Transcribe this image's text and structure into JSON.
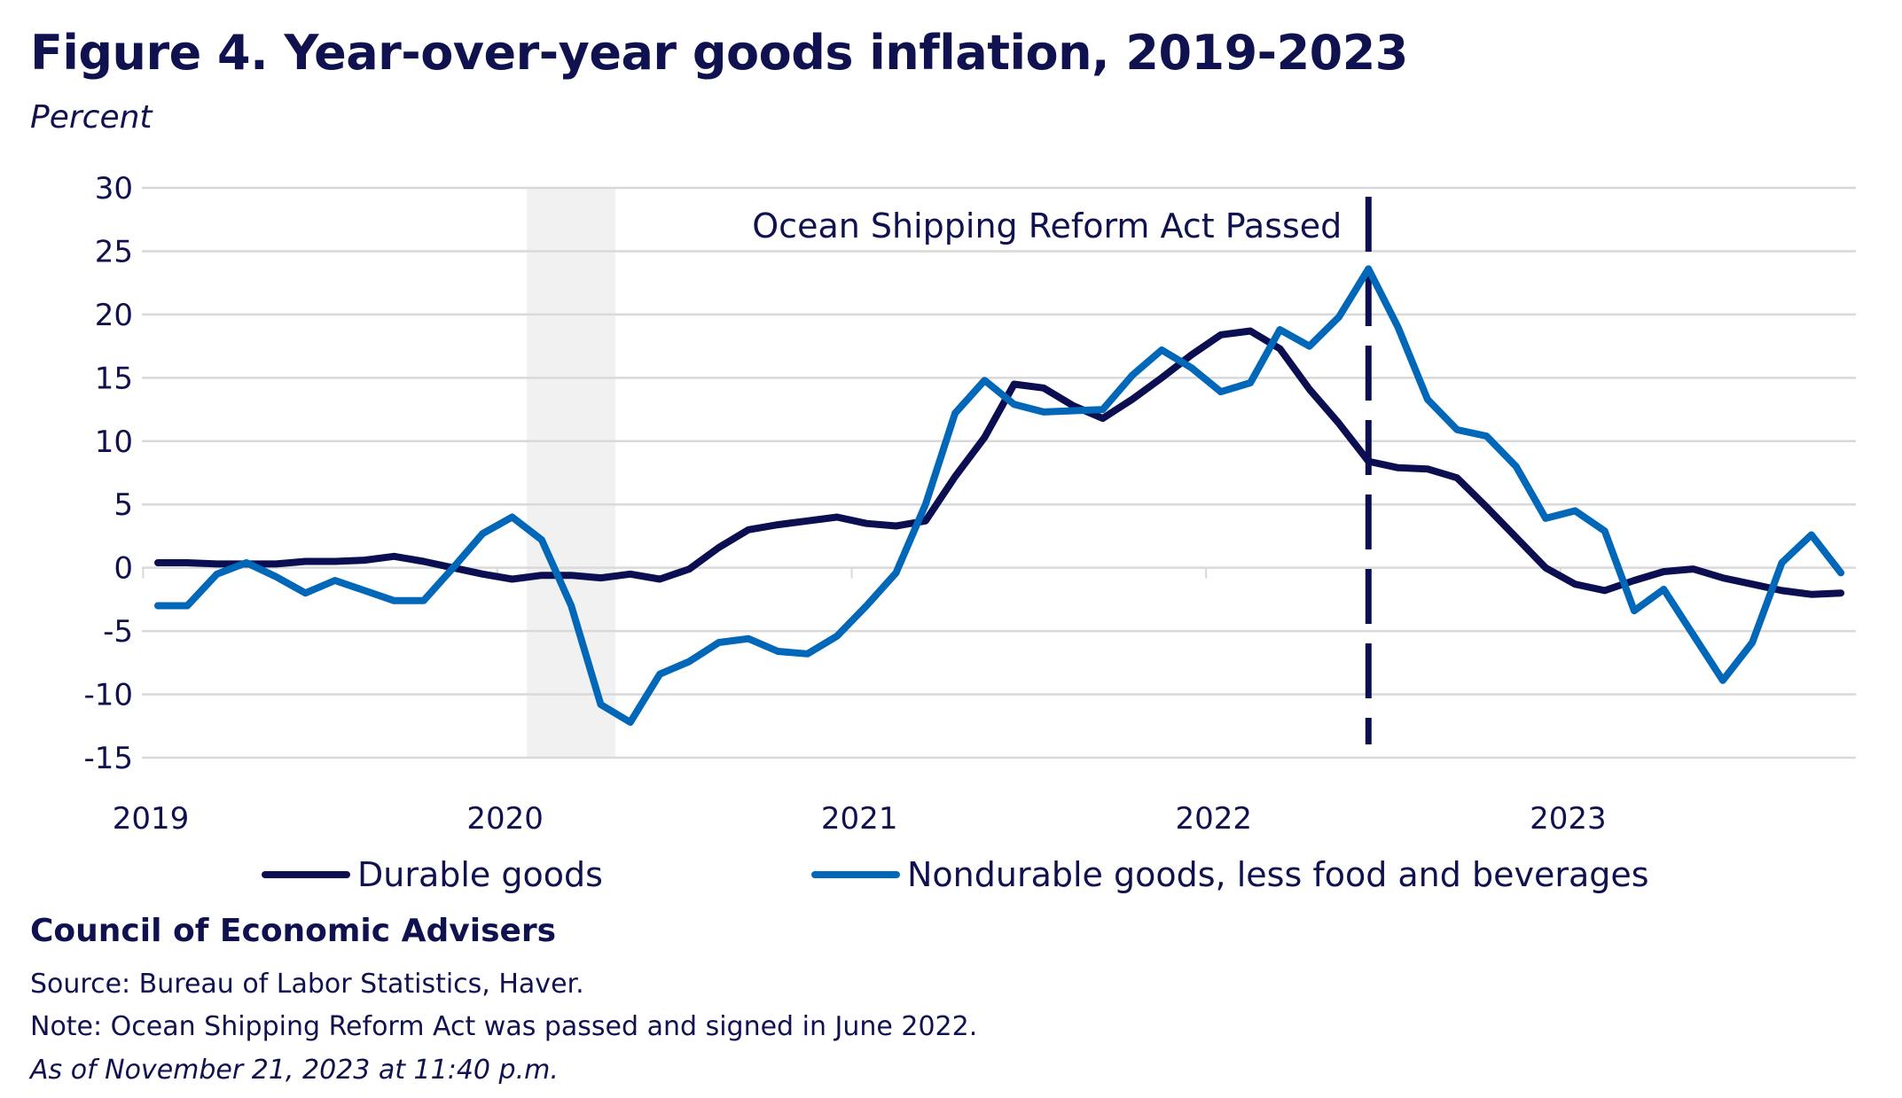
{
  "title": "Figure 4. Year-over-year goods inflation, 2019-2023",
  "unit_label": "Percent",
  "org": "Council of Economic Advisers",
  "source": "Source: Bureau of Labor Statistics, Haver.",
  "note": "Note: Ocean Shipping Reform Act was passed and signed in June 2022.",
  "as_of": "As of November 21, 2023 at 11:40 p.m.",
  "colors": {
    "durable": "#0c0e52",
    "nondurable": "#0067b9",
    "recession": "#f1f1f1",
    "grid": "#d9d9d9",
    "text": "#10124f"
  },
  "chart_data": {
    "type": "line",
    "ylabel": "Percent",
    "ylim": [
      -15,
      30
    ],
    "yticks": [
      "30",
      "25",
      "20",
      "15",
      "10",
      "5",
      "0",
      "-5",
      "-10",
      "-15"
    ],
    "xticks": [
      "2019",
      "2020",
      "2021",
      "2022",
      "2023"
    ],
    "x_start": "2019-01",
    "x_end": "2023-10",
    "frequency": "monthly",
    "grid": true,
    "legend_placement": "bottom",
    "shaded_period": {
      "start": "2020-02",
      "end": "2020-04"
    },
    "annotation": {
      "text": "Ocean Shipping Reform Act Passed",
      "date": "2022-06",
      "style": "dashed-vertical-line"
    },
    "series": [
      {
        "name": "Durable goods",
        "values": [
          0.4,
          0.4,
          0.3,
          0.3,
          0.3,
          0.5,
          0.5,
          0.6,
          0.9,
          0.5,
          0.0,
          -0.5,
          -0.9,
          -0.6,
          -0.6,
          -0.8,
          -0.5,
          -0.9,
          -0.1,
          1.6,
          3.0,
          3.4,
          3.7,
          4.0,
          3.5,
          3.3,
          3.7,
          7.2,
          10.3,
          14.5,
          14.2,
          12.8,
          11.8,
          13.3,
          15.0,
          16.8,
          18.4,
          18.7,
          17.3,
          14.1,
          11.4,
          8.4,
          7.9,
          7.8,
          7.1,
          4.8,
          2.4,
          0.0,
          -1.3,
          -1.8,
          -1.0,
          -0.3,
          -0.1,
          -0.8,
          -1.3,
          -1.8,
          -2.1,
          -2.0
        ]
      },
      {
        "name": "Nondurable goods, less food and beverages",
        "values": [
          -3.0,
          -3.0,
          -0.5,
          0.4,
          -0.7,
          -2.0,
          -1.0,
          -1.8,
          -2.6,
          -2.6,
          0.0,
          2.7,
          4.0,
          2.2,
          -3.0,
          -10.8,
          -12.2,
          -8.4,
          -7.4,
          -5.9,
          -5.6,
          -6.6,
          -6.8,
          -5.4,
          -3.0,
          -0.4,
          5.0,
          12.2,
          14.8,
          12.9,
          12.3,
          12.4,
          12.5,
          15.2,
          17.2,
          15.8,
          13.9,
          14.6,
          18.8,
          17.5,
          19.8,
          23.6,
          19.0,
          13.3,
          10.9,
          10.4,
          8.0,
          3.9,
          4.5,
          2.9,
          -3.4,
          -1.7,
          -5.3,
          -8.9,
          -5.9,
          0.4,
          2.6,
          -0.4
        ]
      }
    ]
  }
}
